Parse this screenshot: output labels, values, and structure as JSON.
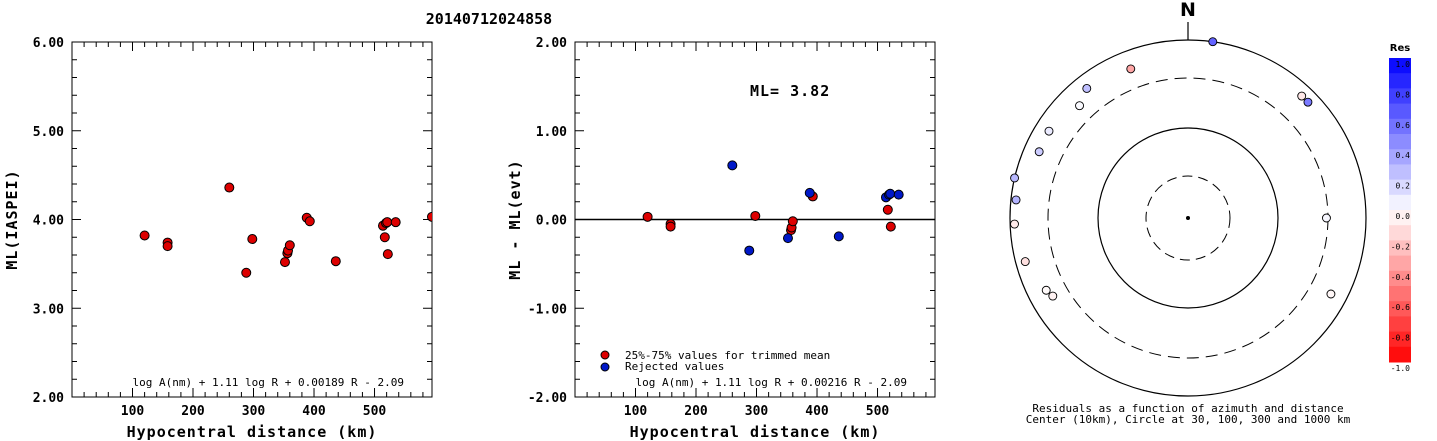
{
  "title": "20140712024858",
  "chart_data": [
    {
      "type": "scatter",
      "ylabel": "ML(IASPEI)",
      "xlabel": "Hypocentral distance (km)",
      "xlim": [
        0,
        595
      ],
      "ylim": [
        2.0,
        6.0
      ],
      "xticks": [
        "100",
        "200",
        "300",
        "400",
        "500"
      ],
      "yticks": [
        "2.00",
        "3.00",
        "4.00",
        "5.00",
        "6.00"
      ],
      "formula": "log A(nm) + 1.11 log R + 0.00189 R - 2.09",
      "colors": {
        "used": "#dd0000"
      },
      "points": [
        {
          "x": 120,
          "y": 3.82
        },
        {
          "x": 158,
          "y": 3.74
        },
        {
          "x": 158,
          "y": 3.7
        },
        {
          "x": 260,
          "y": 4.36
        },
        {
          "x": 288,
          "y": 3.4
        },
        {
          "x": 298,
          "y": 3.78
        },
        {
          "x": 352,
          "y": 3.52
        },
        {
          "x": 356,
          "y": 3.62
        },
        {
          "x": 357,
          "y": 3.65
        },
        {
          "x": 360,
          "y": 3.71
        },
        {
          "x": 388,
          "y": 4.02
        },
        {
          "x": 393,
          "y": 3.98
        },
        {
          "x": 436,
          "y": 3.53
        },
        {
          "x": 514,
          "y": 3.93
        },
        {
          "x": 517,
          "y": 3.8
        },
        {
          "x": 519,
          "y": 3.96
        },
        {
          "x": 521,
          "y": 3.97
        },
        {
          "x": 522,
          "y": 3.61
        },
        {
          "x": 535,
          "y": 3.97
        },
        {
          "x": 595,
          "y": 4.03
        }
      ]
    },
    {
      "type": "scatter",
      "ylabel": "ML - ML(evt)",
      "xlabel": "Hypocentral distance (km)",
      "xlim": [
        0,
        595
      ],
      "ylim": [
        -2.0,
        2.0
      ],
      "xticks": [
        "100",
        "200",
        "300",
        "400",
        "500"
      ],
      "yticks": [
        "-2.00",
        "-1.00",
        "0.00",
        "1.00",
        "2.00"
      ],
      "annotation": "ML= 3.82",
      "formula": "log A(nm) + 1.11 log R + 0.00216 R - 2.09",
      "legend": {
        "used": "25%-75% values for trimmed mean",
        "rejected": "Rejected values"
      },
      "colors": {
        "used": "#dd0000",
        "rejected": "#0018c8"
      },
      "series": [
        {
          "name": "25%-75% values for trimmed mean",
          "points": [
            {
              "x": 120,
              "y": 0.03
            },
            {
              "x": 158,
              "y": -0.05
            },
            {
              "x": 158,
              "y": -0.08
            },
            {
              "x": 298,
              "y": 0.04
            },
            {
              "x": 357,
              "y": -0.12
            },
            {
              "x": 358,
              "y": -0.09
            },
            {
              "x": 360,
              "y": -0.02
            },
            {
              "x": 393,
              "y": 0.26
            },
            {
              "x": 517,
              "y": 0.11
            },
            {
              "x": 522,
              "y": -0.08
            }
          ]
        },
        {
          "name": "Rejected values",
          "points": [
            {
              "x": 260,
              "y": 0.61
            },
            {
              "x": 288,
              "y": -0.35
            },
            {
              "x": 352,
              "y": -0.21
            },
            {
              "x": 388,
              "y": 0.3
            },
            {
              "x": 436,
              "y": -0.19
            },
            {
              "x": 514,
              "y": 0.25
            },
            {
              "x": 519,
              "y": 0.28
            },
            {
              "x": 521,
              "y": 0.29
            },
            {
              "x": 535,
              "y": 0.28
            }
          ]
        }
      ]
    },
    {
      "type": "scatter",
      "subtype": "polar",
      "north_label": "N",
      "caption_line1": "Residuals as a function of azimuth and distance",
      "caption_line2": "Center (10km), Circle at 30, 100, 300 and 1000 km",
      "colorbar_title": "Res",
      "colorbar_ticks": [
        "1.0",
        "0.8",
        "0.6",
        "0.4",
        "0.2",
        "0.0",
        "-0.2",
        "-0.4",
        "-0.6",
        "-0.8",
        "-1.0"
      ],
      "colorbar_range": [
        -1.0,
        1.0
      ],
      "points": [
        {
          "azimuth": 8,
          "distance": 1000,
          "res": 0.61
        },
        {
          "azimuth": 339,
          "distance": 560,
          "res": -0.35
        },
        {
          "azimuth": 322,
          "distance": 650,
          "res": 0.25
        },
        {
          "azimuth": 316,
          "distance": 500,
          "res": 0.02
        },
        {
          "azimuth": 302,
          "distance": 640,
          "res": 0.08
        },
        {
          "azimuth": 294,
          "distance": 620,
          "res": 0.2
        },
        {
          "azimuth": 283,
          "distance": 1000,
          "res": 0.28
        },
        {
          "azimuth": 276,
          "distance": 850,
          "res": 0.3
        },
        {
          "azimuth": 268,
          "distance": 870,
          "res": -0.08
        },
        {
          "azimuth": 255,
          "distance": 740,
          "res": -0.12
        },
        {
          "azimuth": 243,
          "distance": 550,
          "res": -0.02
        },
        {
          "azimuth": 240,
          "distance": 500,
          "res": -0.05
        },
        {
          "azimuth": 43,
          "distance": 700,
          "res": -0.09
        },
        {
          "azimuth": 46,
          "distance": 700,
          "res": 0.52
        },
        {
          "azimuth": 90,
          "distance": 290,
          "res": 0.03
        },
        {
          "azimuth": 118,
          "distance": 600,
          "res": -0.03
        }
      ]
    }
  ]
}
